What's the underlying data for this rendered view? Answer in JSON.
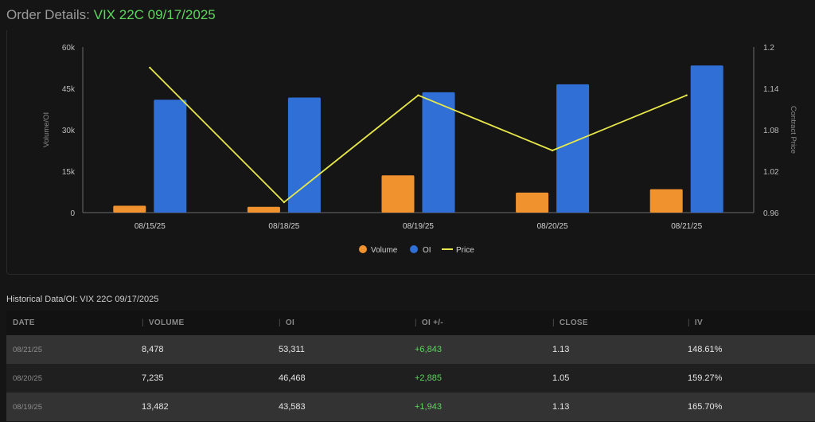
{
  "header": {
    "label": "Order Details:",
    "contract": "VIX 22C 09/17/2025"
  },
  "chart_data": {
    "type": "bar",
    "categories": [
      "08/15/25",
      "08/18/25",
      "08/19/25",
      "08/20/25",
      "08/21/25"
    ],
    "series": [
      {
        "name": "Volume",
        "type": "bar",
        "axis": "left",
        "color": "#f0922e",
        "values": [
          2500,
          2100,
          13482,
          7235,
          8478
        ]
      },
      {
        "name": "OI",
        "type": "bar",
        "axis": "left",
        "color": "#2f6fd6",
        "values": [
          40900,
          41700,
          43583,
          46468,
          53311
        ]
      },
      {
        "name": "Price",
        "type": "line",
        "axis": "right",
        "color": "#e8e84a",
        "values": [
          1.17,
          0.975,
          1.13,
          1.05,
          1.13
        ]
      }
    ],
    "ylabel": "Volume/OI",
    "y2label": "Contract Price",
    "ylim": [
      0,
      60000
    ],
    "y2lim": [
      0.96,
      1.2
    ],
    "yticks": [
      "0",
      "15k",
      "30k",
      "45k",
      "60k"
    ],
    "y2ticks": [
      "0.96",
      "1.02",
      "1.08",
      "1.14",
      "1.2"
    ],
    "legend": "bottom"
  },
  "history": {
    "title": "Historical Data/OI: VIX 22C 09/17/2025",
    "columns": [
      "DATE",
      "VOLUME",
      "OI",
      "OI +/-",
      "CLOSE",
      "IV"
    ],
    "rows": [
      [
        "08/21/25",
        "8,478",
        "53,311",
        "+6,843",
        "1.13",
        "148.61%"
      ],
      [
        "08/20/25",
        "7,235",
        "46,468",
        "+2,885",
        "1.05",
        "159.27%"
      ],
      [
        "08/19/25",
        "13,482",
        "43,583",
        "+1,943",
        "1.13",
        "165.70%"
      ]
    ]
  }
}
